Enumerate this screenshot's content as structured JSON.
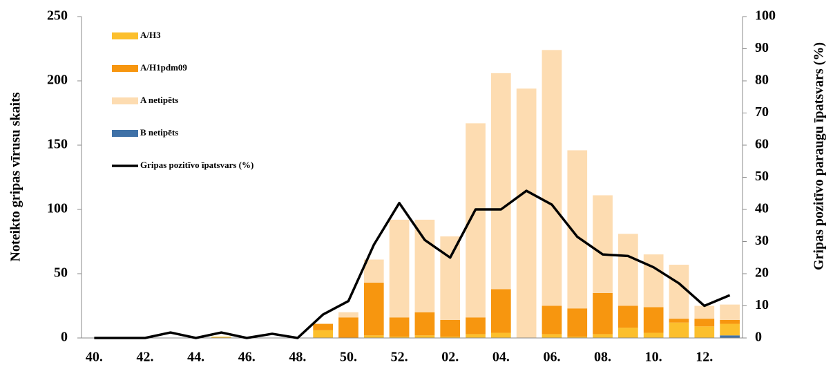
{
  "chart_data": {
    "type": "bar",
    "y_label": "Noteikto gripas vīrusu skaits",
    "y2_label": "Gripas pozitīvo paraugu īpatsvars (%)",
    "categories": [
      "40.",
      null,
      "42.",
      null,
      "44.",
      null,
      "46.",
      null,
      "48.",
      null,
      "50.",
      null,
      "52.",
      null,
      "02.",
      null,
      "04.",
      null,
      "06.",
      null,
      "08.",
      null,
      "10.",
      null,
      "12.",
      null
    ],
    "series": [
      {
        "name": "A/H3",
        "color": "#fcbf2c",
        "values": [
          0,
          0,
          0,
          0,
          0,
          1,
          0,
          0,
          0,
          6,
          0,
          2,
          1,
          2,
          1,
          3,
          4,
          0,
          3,
          1,
          3,
          8,
          4,
          12,
          9,
          9
        ]
      },
      {
        "name": "A/H1pdm09",
        "color": "#f7960f",
        "values": [
          0,
          0,
          0,
          0,
          0,
          0,
          0,
          0,
          0,
          5,
          16,
          41,
          15,
          18,
          13,
          13,
          34,
          0,
          22,
          22,
          32,
          17,
          20,
          3,
          6,
          3
        ]
      },
      {
        "name": "A netipēts",
        "color": "#fddcb1",
        "values": [
          0,
          0,
          0,
          0,
          0,
          0,
          0,
          0,
          0,
          0,
          4,
          18,
          76,
          72,
          65,
          151,
          168,
          194,
          199,
          123,
          76,
          56,
          41,
          42,
          10,
          12
        ]
      },
      {
        "name": "B netipēts",
        "color": "#3f71a7",
        "values": [
          0,
          0,
          0,
          0,
          0,
          0,
          0,
          0,
          0,
          0,
          0,
          0,
          0,
          0,
          0,
          0,
          0,
          0,
          0,
          0,
          0,
          0,
          0,
          0,
          0,
          2
        ]
      },
      {
        "name": "Gripas pozitīvo īpatsvars (%)",
        "color": "#000000",
        "type": "line",
        "axis": "y2",
        "values": [
          0,
          0,
          0,
          1.7,
          0,
          1.7,
          0,
          1.3,
          0,
          7.3,
          11.5,
          29,
          42,
          30.5,
          25,
          40,
          40,
          45.8,
          41.5,
          31.5,
          26,
          25.5,
          22,
          17,
          10,
          13.3
        ]
      }
    ],
    "ylim": [
      0,
      250
    ],
    "yticks": [
      0,
      50,
      100,
      150,
      200,
      250
    ],
    "y2lim": [
      0,
      100
    ],
    "y2ticks": [
      0,
      10,
      20,
      30,
      40,
      50,
      60,
      70,
      80,
      90,
      100
    ],
    "stacked": true,
    "legend": "upper left"
  }
}
